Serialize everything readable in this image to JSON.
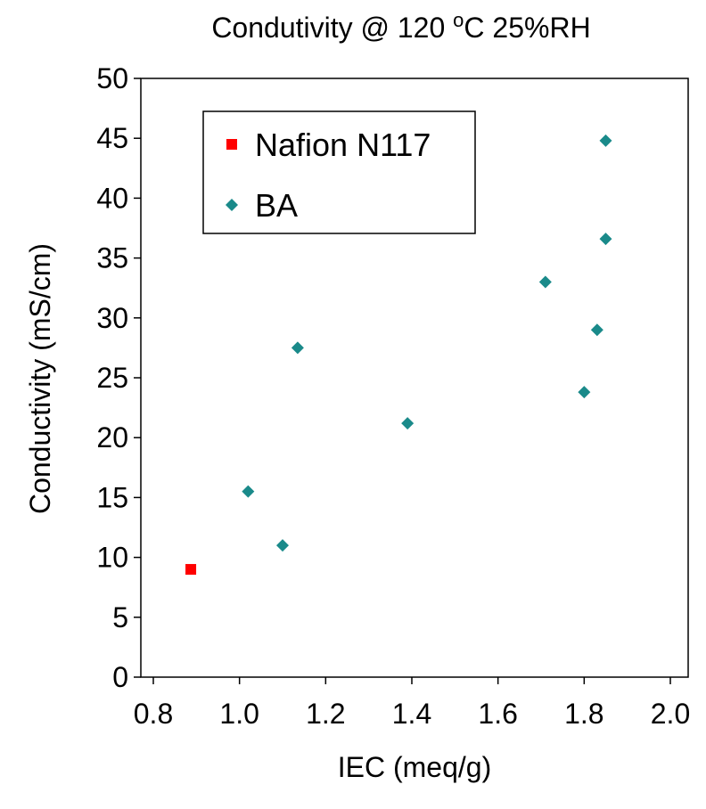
{
  "chart_data": {
    "type": "scatter",
    "title": [
      "Condutivity @ 120 ",
      "o",
      "C 25%RH"
    ],
    "x_label": "IEC  (meq/g)",
    "y_label": "Conductivity (mS/cm)",
    "xlim": [
      0.8,
      2.0
    ],
    "xticks": [
      {
        "value": 0.8,
        "label": "0.8"
      },
      {
        "value": 1.0,
        "label": "1.0"
      },
      {
        "value": 1.2,
        "label": "1.2"
      },
      {
        "value": 1.4,
        "label": "1.4"
      },
      {
        "value": 1.6,
        "label": "1.6"
      },
      {
        "value": 1.8,
        "label": "1.8"
      },
      {
        "value": 2.0,
        "label": "2.0"
      }
    ],
    "ylim": [
      0,
      50
    ],
    "yticks": [
      0,
      5,
      10,
      15,
      20,
      25,
      30,
      35,
      40,
      45,
      50
    ],
    "series": [
      {
        "name": "Nafion N117",
        "color": "#ff0000",
        "marker": "square",
        "x": [
          0.887
        ],
        "values": [
          9
        ]
      },
      {
        "name": "BA",
        "color": "#1a8a8a",
        "marker": "diamond",
        "x": [
          1.02,
          1.1,
          1.135,
          1.39,
          1.71,
          1.8,
          1.83,
          1.85,
          1.85
        ],
        "values": [
          15.5,
          11,
          27.5,
          21.2,
          33,
          23.8,
          29,
          36.6,
          44.8
        ]
      }
    ]
  }
}
